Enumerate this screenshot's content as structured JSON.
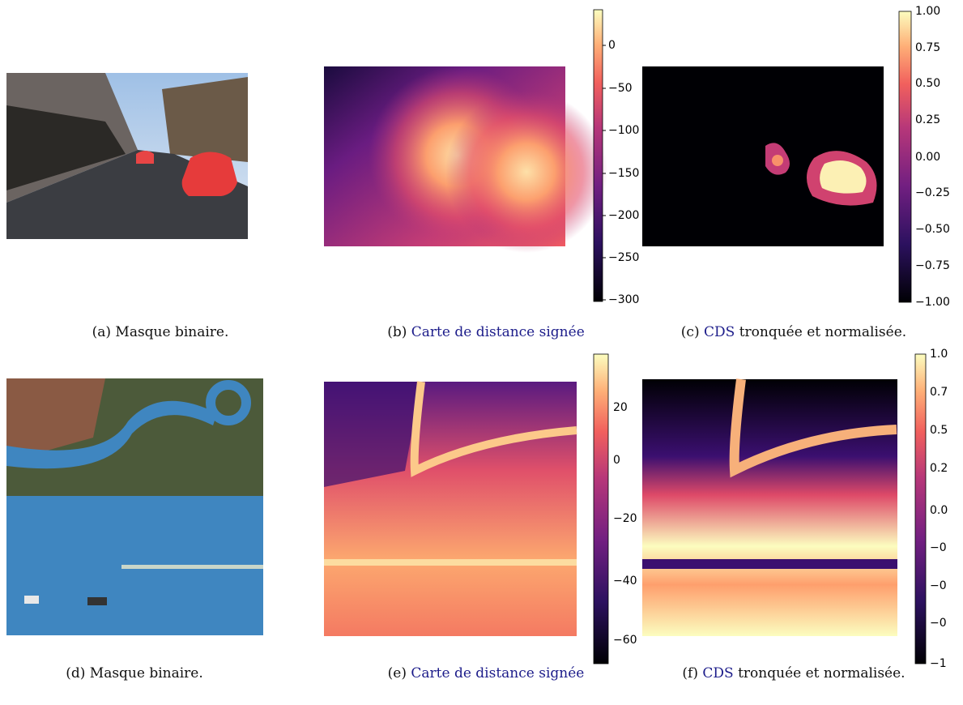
{
  "panels": [
    {
      "label": "(a)",
      "caption": "Masque binaire."
    },
    {
      "label": "(b)",
      "link": "Carte de distance signée",
      "colorbar_ticks": [
        "0",
        "−50",
        "−100",
        "−150",
        "−200",
        "−250",
        "−300"
      ]
    },
    {
      "label": "(c)",
      "link": "CDS",
      "caption": "tronquée et normalisée.",
      "colorbar_ticks": [
        "1.00",
        "0.75",
        "0.50",
        "0.25",
        "0.00",
        "−0.25",
        "−0.50",
        "−0.75",
        "−1.00"
      ]
    },
    {
      "label": "(d)",
      "caption": "Masque binaire."
    },
    {
      "label": "(e)",
      "link": "Carte de distance signée",
      "colorbar_ticks": [
        "20",
        "0",
        "−20",
        "−40",
        "−60"
      ]
    },
    {
      "label": "(f)",
      "link": "CDS",
      "caption": "tronquée et normalisée.",
      "colorbar_ticks": [
        "1.0",
        "0.7",
        "0.5",
        "0.2",
        "0.0",
        "−0",
        "−0",
        "−0",
        "−1"
      ]
    }
  ]
}
